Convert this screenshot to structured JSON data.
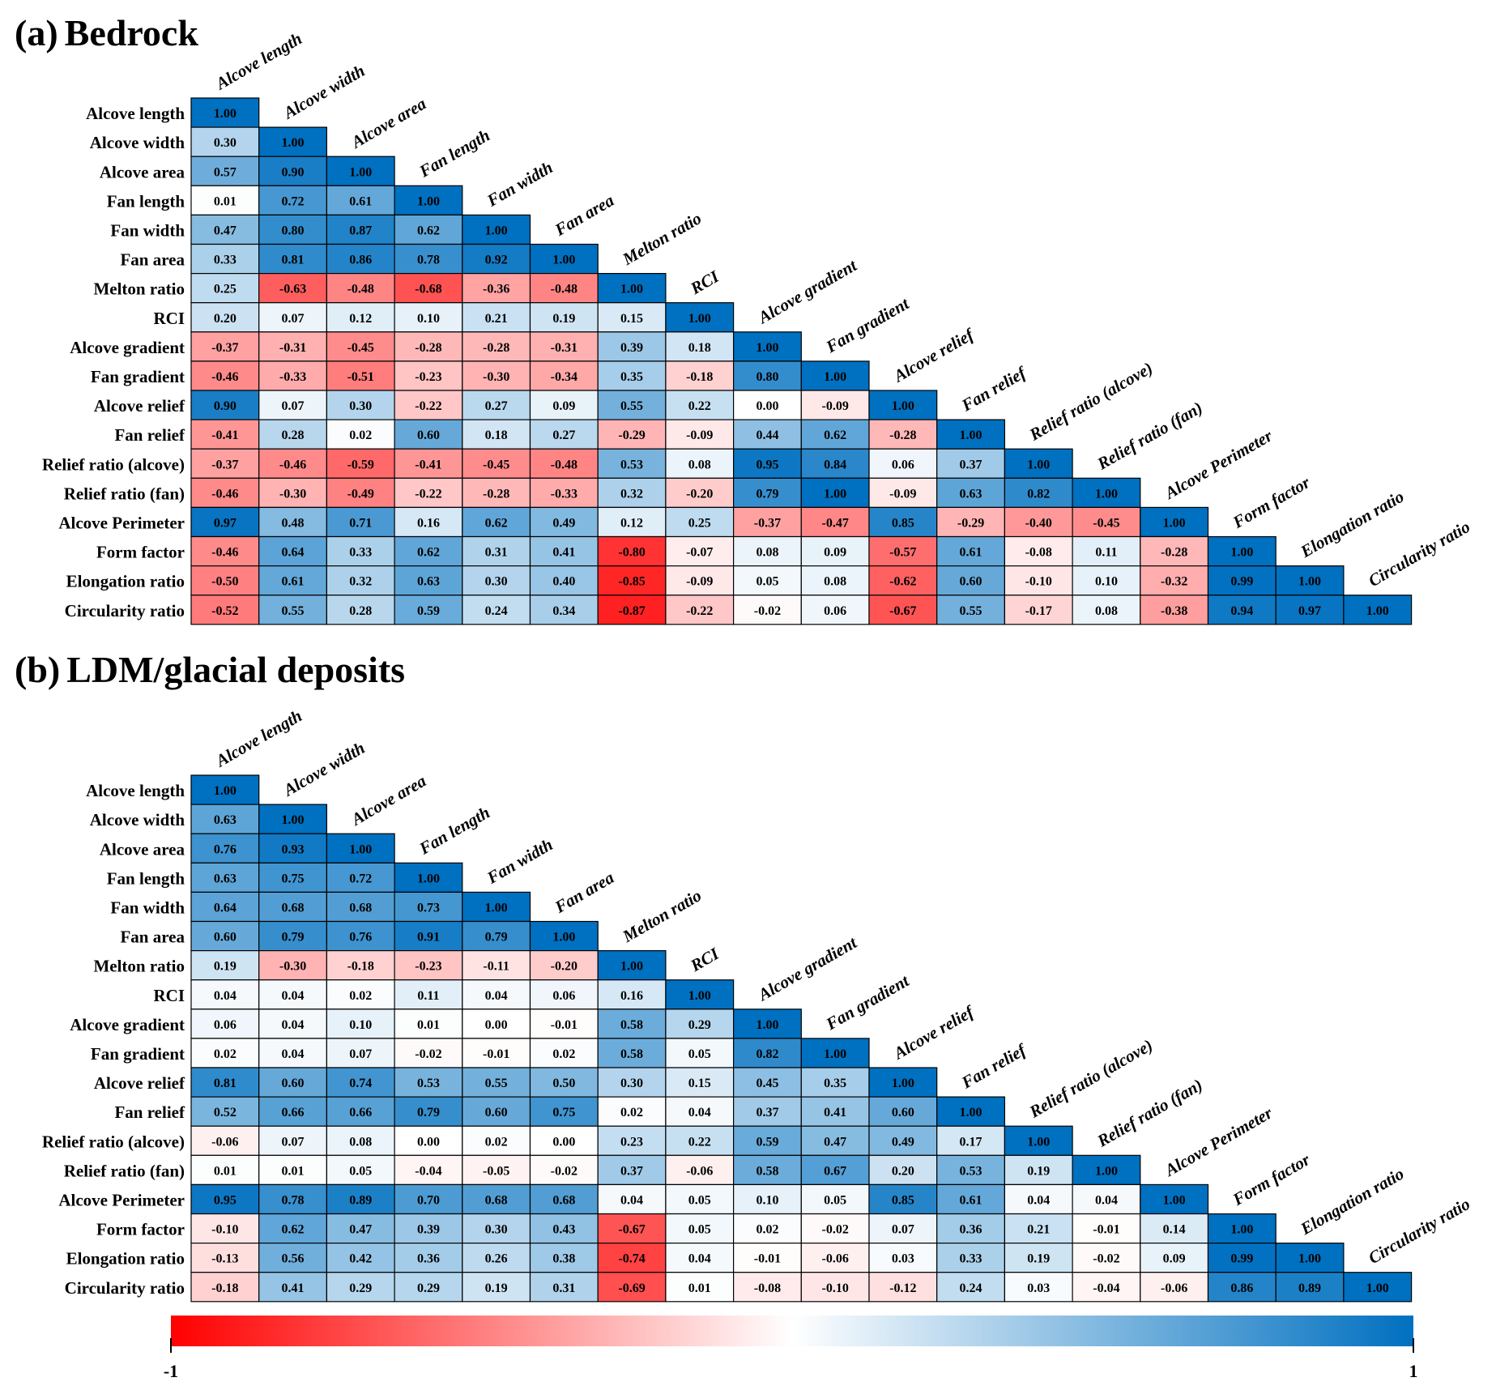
{
  "chart_data": [
    {
      "type": "heatmap",
      "panel_tag": "(a)",
      "title": "Bedrock",
      "variables": [
        "Alcove length",
        "Alcove width",
        "Alcove area",
        "Fan length",
        "Fan width",
        "Fan area",
        "Melton ratio",
        "RCI",
        "Alcove gradient",
        "Fan gradient",
        "Alcove relief",
        "Fan relief",
        "Relief ratio (alcove)",
        "Relief ratio (fan)",
        "Alcove Perimeter",
        "Form factor",
        "Elongation ratio",
        "Circularity ratio"
      ],
      "matrix_lower": [
        [
          1.0
        ],
        [
          0.3,
          1.0
        ],
        [
          0.57,
          0.9,
          1.0
        ],
        [
          0.01,
          0.72,
          0.61,
          1.0
        ],
        [
          0.47,
          0.8,
          0.87,
          0.62,
          1.0
        ],
        [
          0.33,
          0.81,
          0.86,
          0.78,
          0.92,
          1.0
        ],
        [
          0.25,
          -0.63,
          -0.48,
          -0.68,
          -0.36,
          -0.48,
          1.0
        ],
        [
          0.2,
          0.07,
          0.12,
          0.1,
          0.21,
          0.19,
          0.15,
          1.0
        ],
        [
          -0.37,
          -0.31,
          -0.45,
          -0.28,
          -0.28,
          -0.31,
          0.39,
          0.18,
          1.0
        ],
        [
          -0.46,
          -0.33,
          -0.51,
          -0.23,
          -0.3,
          -0.34,
          0.35,
          -0.18,
          0.8,
          1.0
        ],
        [
          0.9,
          0.07,
          0.3,
          -0.22,
          0.27,
          0.09,
          0.55,
          0.22,
          0.0,
          -0.09,
          1.0
        ],
        [
          -0.41,
          0.28,
          0.02,
          0.6,
          0.18,
          0.27,
          -0.29,
          -0.09,
          0.44,
          0.62,
          -0.28,
          1.0
        ],
        [
          -0.37,
          -0.46,
          -0.59,
          -0.41,
          -0.45,
          -0.48,
          0.53,
          0.08,
          0.95,
          0.84,
          0.06,
          0.37,
          1.0
        ],
        [
          -0.46,
          -0.3,
          -0.49,
          -0.22,
          -0.28,
          -0.33,
          0.32,
          -0.2,
          0.79,
          1.0,
          -0.09,
          0.63,
          0.82,
          1.0
        ],
        [
          0.97,
          0.48,
          0.71,
          0.16,
          0.62,
          0.49,
          0.12,
          0.25,
          -0.37,
          -0.47,
          0.85,
          -0.29,
          -0.4,
          -0.45,
          1.0
        ],
        [
          -0.46,
          0.64,
          0.33,
          0.62,
          0.31,
          0.41,
          -0.8,
          -0.07,
          0.08,
          0.09,
          -0.57,
          0.61,
          -0.08,
          0.11,
          -0.28,
          1.0
        ],
        [
          -0.5,
          0.61,
          0.32,
          0.63,
          0.3,
          0.4,
          -0.85,
          -0.09,
          0.05,
          0.08,
          -0.62,
          0.6,
          -0.1,
          0.1,
          -0.32,
          0.99,
          1.0
        ],
        [
          -0.52,
          0.55,
          0.28,
          0.59,
          0.24,
          0.34,
          -0.87,
          -0.22,
          -0.02,
          0.06,
          -0.67,
          0.55,
          -0.17,
          0.08,
          -0.38,
          0.94,
          0.97,
          1.0
        ]
      ]
    },
    {
      "type": "heatmap",
      "panel_tag": "(b)",
      "title": "LDM/glacial deposits",
      "variables": [
        "Alcove length",
        "Alcove width",
        "Alcove area",
        "Fan length",
        "Fan width",
        "Fan area",
        "Melton ratio",
        "RCI",
        "Alcove gradient",
        "Fan gradient",
        "Alcove relief",
        "Fan relief",
        "Relief ratio (alcove)",
        "Relief ratio (fan)",
        "Alcove Perimeter",
        "Form factor",
        "Elongation ratio",
        "Circularity ratio"
      ],
      "matrix_lower": [
        [
          1.0
        ],
        [
          0.63,
          1.0
        ],
        [
          0.76,
          0.93,
          1.0
        ],
        [
          0.63,
          0.75,
          0.72,
          1.0
        ],
        [
          0.64,
          0.68,
          0.68,
          0.73,
          1.0
        ],
        [
          0.6,
          0.79,
          0.76,
          0.91,
          0.79,
          1.0
        ],
        [
          0.19,
          -0.3,
          -0.18,
          -0.23,
          -0.11,
          -0.2,
          1.0
        ],
        [
          0.04,
          0.04,
          0.02,
          0.11,
          0.04,
          0.06,
          0.16,
          1.0
        ],
        [
          0.06,
          0.04,
          0.1,
          0.01,
          0.0,
          -0.01,
          0.58,
          0.29,
          1.0
        ],
        [
          0.02,
          0.04,
          0.07,
          -0.02,
          -0.01,
          0.02,
          0.58,
          0.05,
          0.82,
          1.0
        ],
        [
          0.81,
          0.6,
          0.74,
          0.53,
          0.55,
          0.5,
          0.3,
          0.15,
          0.45,
          0.35,
          1.0
        ],
        [
          0.52,
          0.66,
          0.66,
          0.79,
          0.6,
          0.75,
          0.02,
          0.04,
          0.37,
          0.41,
          0.6,
          1.0
        ],
        [
          -0.06,
          0.07,
          0.08,
          0.0,
          0.02,
          0.0,
          0.23,
          0.22,
          0.59,
          0.47,
          0.49,
          0.17,
          1.0
        ],
        [
          0.01,
          0.01,
          0.05,
          -0.04,
          -0.05,
          -0.02,
          0.37,
          -0.06,
          0.58,
          0.67,
          0.2,
          0.53,
          0.19,
          1.0
        ],
        [
          0.95,
          0.78,
          0.89,
          0.7,
          0.68,
          0.68,
          0.04,
          0.05,
          0.1,
          0.05,
          0.85,
          0.61,
          0.04,
          0.04,
          1.0
        ],
        [
          -0.1,
          0.62,
          0.47,
          0.39,
          0.3,
          0.43,
          -0.67,
          0.05,
          0.02,
          -0.02,
          0.07,
          0.36,
          0.21,
          -0.01,
          0.14,
          1.0
        ],
        [
          -0.13,
          0.56,
          0.42,
          0.36,
          0.26,
          0.38,
          -0.74,
          0.04,
          -0.01,
          -0.06,
          0.03,
          0.33,
          0.19,
          -0.02,
          0.09,
          0.99,
          1.0
        ],
        [
          -0.18,
          0.41,
          0.29,
          0.29,
          0.19,
          0.31,
          -0.69,
          0.01,
          -0.08,
          -0.1,
          -0.12,
          0.24,
          0.03,
          -0.04,
          -0.06,
          0.86,
          0.89,
          1.0
        ]
      ]
    }
  ],
  "colorbar": {
    "min_label": "-1",
    "max_label": "1",
    "range": [
      -1,
      1
    ],
    "low_color": "#ff0000",
    "mid_color": "#ffffff",
    "high_color": "#0070c0"
  }
}
